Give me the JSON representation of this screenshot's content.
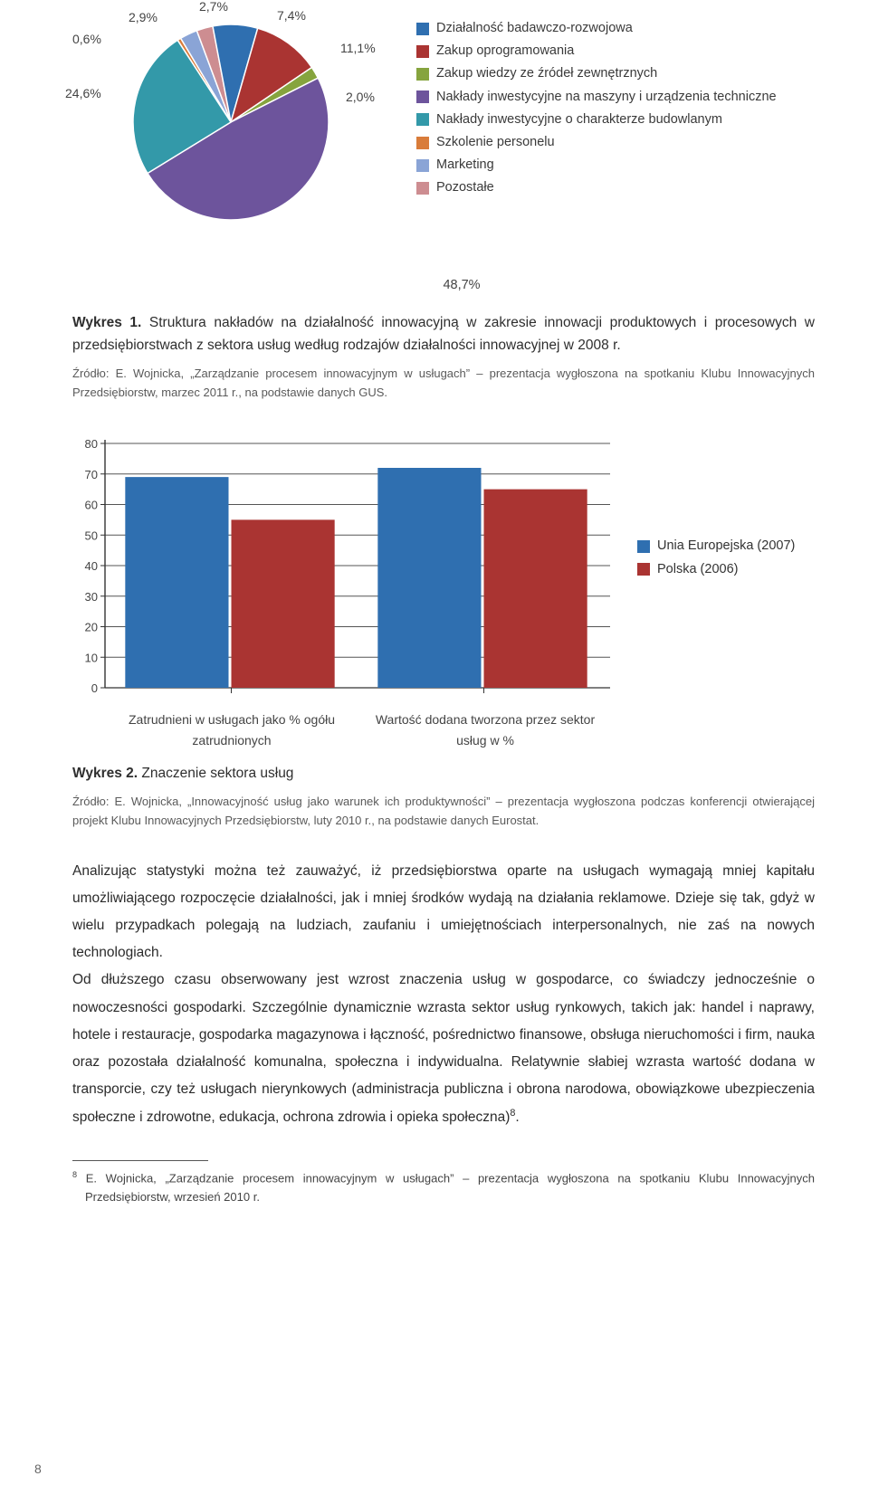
{
  "pie_chart": {
    "type": "pie",
    "background_color": "#ffffff",
    "slices": [
      {
        "label": "Działalność badawczo-rozwojowa",
        "value": 7.4,
        "color": "#2f6fb0"
      },
      {
        "label": "Zakup oprogramowania",
        "value": 11.1,
        "color": "#aa3432"
      },
      {
        "label": "Zakup wiedzy ze źródeł zewnętrznych",
        "value": 2.0,
        "color": "#86a43e"
      },
      {
        "label": "Nakłady inwestycyjne na maszyny i urządzenia techniczne",
        "value": 48.7,
        "color": "#6d549c"
      },
      {
        "label": "Nakłady inwestycyjne o charakterze budowlanym",
        "value": 24.6,
        "color": "#3399a9"
      },
      {
        "label": "Szkolenie personelu",
        "value": 0.6,
        "color": "#d97c3a"
      },
      {
        "label": "Marketing",
        "value": 2.9,
        "color": "#8aa4d6"
      },
      {
        "label": "Pozostałe",
        "value": 2.7,
        "color": "#cd8d91"
      }
    ],
    "outer_labels": {
      "tl1": "0,6%",
      "tl2": "2,9%",
      "t": "2,7%",
      "tr1": "7,4%",
      "tr2": "11,1%",
      "tr3": "2,0%",
      "l": "24,6%",
      "b": "48,7%"
    },
    "label_fontsize": 14
  },
  "wykres1": {
    "heading": "Wykres 1.",
    "text": "Struktura nakładów na działalność innowacyjną w zakresie innowacji produktowych i procesowych w przedsiębiorstwach z sektora usług według rodzajów działalności innowacyjnej w 2008 r.",
    "source": "Źródło: E. Wojnicka, „Zarządzanie procesem innowacyjnym w usługach” – prezentacja wygłoszona na spotkaniu Klubu Innowacyjnych Przedsiębiorstw, marzec 2011 r., na podstawie danych GUS."
  },
  "bar_chart": {
    "type": "bar",
    "ylim": [
      0,
      80
    ],
    "ytick_step": 10,
    "yticks": [
      "0",
      "10",
      "20",
      "30",
      "40",
      "50",
      "60",
      "70",
      "80"
    ],
    "grid_color": "#555555",
    "axis_color": "#333333",
    "background_color": "#ffffff",
    "bar_width_ratio": 0.42,
    "categories": [
      "Zatrudnieni w usługach jako % ogółu zatrudnionych",
      "Wartość dodana tworzona przez sektor usług w %"
    ],
    "series": [
      {
        "label": "Unia Europejska (2007)",
        "color": "#2f6fb0",
        "values": [
          69,
          72
        ]
      },
      {
        "label": "Polska (2006)",
        "color": "#aa3432",
        "values": [
          55,
          65
        ]
      }
    ],
    "label_fontsize": 14
  },
  "wykres2": {
    "heading": "Wykres 2.",
    "text": "Znaczenie sektora usług",
    "source": "Źródło: E. Wojnicka, „Innowacyjność usług jako warunek ich produktywności” – prezentacja wygłoszona podczas konferencji otwierającej projekt  Klubu Innowacyjnych Przedsiębiorstw, luty 2010 r., na podstawie danych Eurostat."
  },
  "para1": "Analizując statystyki można też zauważyć, iż przedsiębiorstwa oparte na usługach wymagają mniej kapitału umożliwiającego rozpoczęcie działalności, jak i mniej środków wydają na działania reklamowe. Dzieje się tak, gdyż w wielu przypadkach polegają na ludziach, zaufaniu i umiejętnościach interpersonalnych, nie zaś na nowych technologiach.",
  "para2": "Od dłuższego czasu obserwowany jest wzrost znaczenia usług w gospodarce, co świadczy jednocześnie o nowoczesności gospodarki. Szczególnie dynamicznie wzrasta sektor usług rynkowych, takich jak: handel i naprawy, hotele i restauracje, gospodarka magazynowa i łączność, pośrednictwo finansowe, obsługa nieruchomości i firm, nauka oraz pozostała działalność komunalna, społeczna i indywidualna. Relatywnie słabiej wzrasta wartość dodana w transporcie, czy też usługach nierynkowych (administracja publiczna i obrona narodowa, obowiązkowe ubezpieczenia społeczne i zdrowotne, edukacja, ochrona zdrowia i opieka społeczna)",
  "para2_sup": "8",
  "footnote": {
    "num": "8",
    "text": "E. Wojnicka, „Zarządzanie procesem innowacyjnym w usługach” – prezentacja wygłoszona na spotkaniu Klubu Innowacyjnych Przedsiębiorstw, wrzesień 2010 r."
  },
  "page_number": "8"
}
